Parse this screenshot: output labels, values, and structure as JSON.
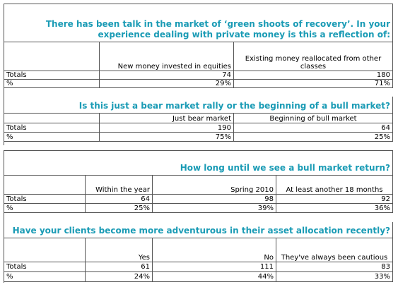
{
  "sections": [
    {
      "question": "There has been talk in the market of ‘green shoots of recovery’. In your experience dealing with private money is this a reflection of:",
      "columns": [
        "New money invested in equities",
        "Existing money reallocated from other classes"
      ],
      "rows": [
        {
          "label": "Totals",
          "values": [
            "74",
            "180"
          ]
        },
        {
          "label": "%",
          "values": [
            "29%",
            "71%"
          ]
        }
      ]
    },
    {
      "question": "Is this just a bear market rally or the beginning of a bull market?",
      "columns": [
        "Just bear market",
        "Beginning of bull market"
      ],
      "rows": [
        {
          "label": "Totals",
          "values": [
            "190",
            "64"
          ]
        },
        {
          "label": "%",
          "values": [
            "75%",
            "25%"
          ]
        }
      ]
    },
    {
      "question": "How long until we see a bull market return?",
      "columns": [
        "Within the year",
        "Spring 2010",
        "At least another 18 months"
      ],
      "rows": [
        {
          "label": "Totals",
          "values": [
            "64",
            "98",
            "92"
          ]
        },
        {
          "label": "%",
          "values": [
            "25%",
            "39%",
            "36%"
          ]
        }
      ]
    },
    {
      "question": "Have your clients become more adventurous in their asset allocation recently?",
      "columns": [
        "Yes",
        "No",
        "They've always been cautious"
      ],
      "rows": [
        {
          "label": "Totals",
          "values": [
            "61",
            "111",
            "83"
          ]
        },
        {
          "label": "%",
          "values": [
            "24%",
            "44%",
            "33%"
          ]
        }
      ]
    }
  ]
}
